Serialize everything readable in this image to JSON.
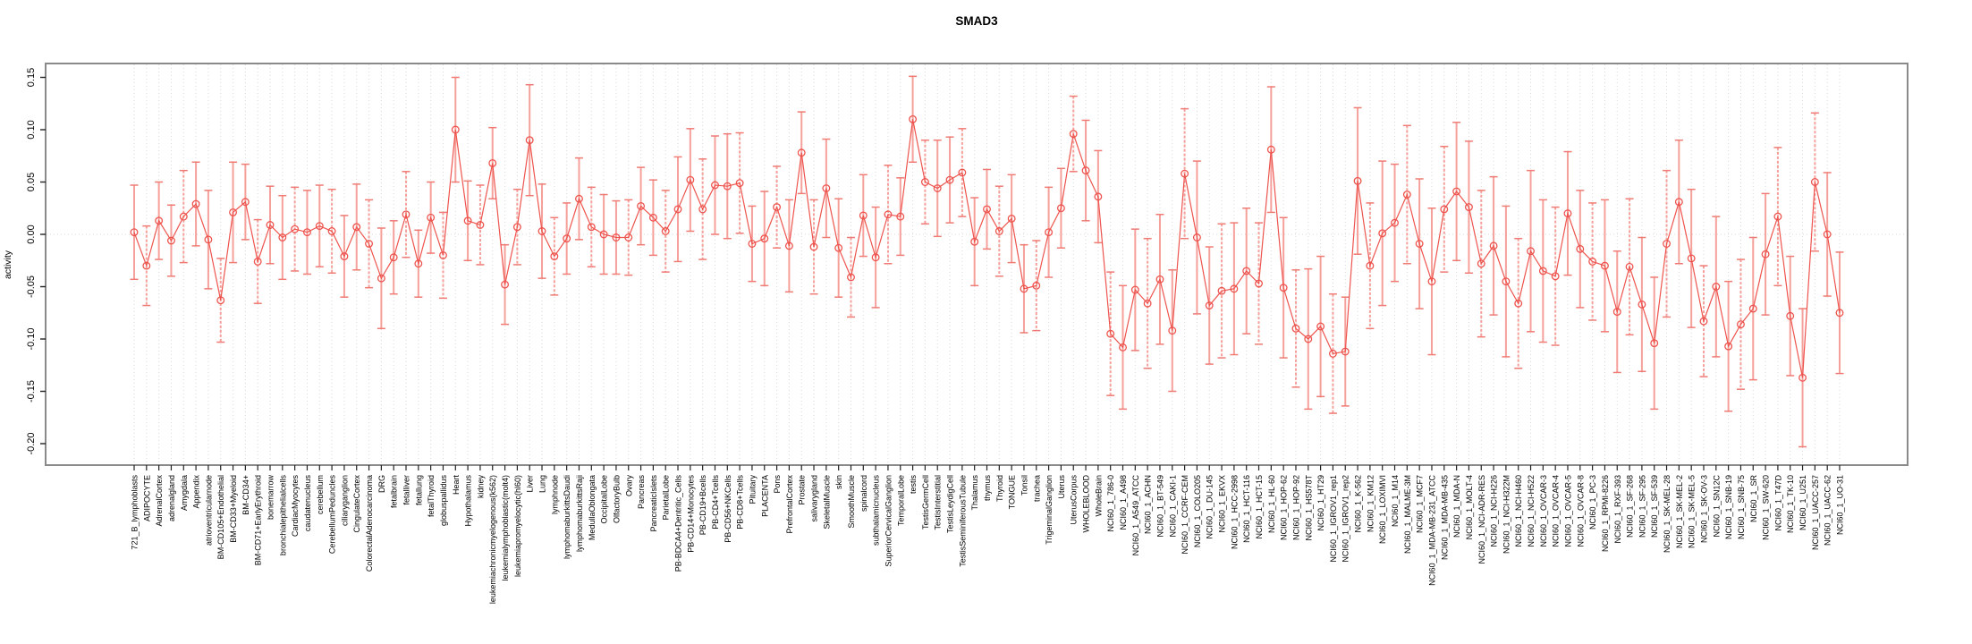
{
  "title": "SMAD3",
  "chart_data": {
    "type": "scatter",
    "subtype": "points-with-error-bars-connected-by-line",
    "title": "SMAD3",
    "xlabel": "",
    "ylabel": "activity",
    "ylim": [
      -0.22,
      0.165
    ],
    "yticks": [
      0.15,
      0.1,
      0.05,
      0.0,
      -0.05,
      -0.1,
      -0.15,
      -0.2
    ],
    "grid": "vertical dotted line at every category; horizontal dotted line at y=0",
    "legend": "none",
    "colors": {
      "point": "#ee544e",
      "line": "#ee544e",
      "errorbar": "#f5a09a",
      "errorbar_cap": "#ef7b74",
      "grid": "#d8d8d8",
      "box": "#8a8a8a",
      "text": "#000000"
    },
    "categories": [
      "721_B_lymphoblasts",
      "ADIPOCYTE",
      "AdrenalCortex",
      "adrenalgland",
      "Amygdala",
      "Appendix",
      "atrioventricularnode",
      "BM-CD105+Endothelial",
      "BM-CD33+Myeloid",
      "BM-CD34+",
      "BM-CD71+EarlyErythroid",
      "bonemarrow",
      "bronchialepithelialcells",
      "CardiacMyocytes",
      "caudatenucleus",
      "cerebellum",
      "CerebellumPeduncles",
      "ciliaryganglion",
      "CingulateCortex",
      "ColorectalAdenocarcinoma",
      "DRG",
      "fetalbrain",
      "fetalliver",
      "fetallung",
      "fetalThyroid",
      "globuspallidus",
      "Heart",
      "Hypothalamus",
      "kidney",
      "leukemiachronicmyelogenous(k562)",
      "leukemialymphoblastic(molt4)",
      "leukemiapromyelocytic(hl60)",
      "Liver",
      "Lung",
      "lymphnode",
      "lymphomaburkittsDaudi",
      "lymphomaburkittsRaji",
      "MedullaOblongata",
      "OccipitalLobe",
      "OlfactoryBulb",
      "Ovary",
      "Pancreas",
      "PancreaticIslets",
      "ParietalLobe",
      "PB-BDCA4+Dentritic_Cells",
      "PB-CD14+Monocytes",
      "PB-CD19+Bcells",
      "PB-CD4+Tcells",
      "PB-CD56+NKCells",
      "PB-CD8+Tcells",
      "Pituitary",
      "PLACENTA",
      "Pons",
      "PrefrontalCortex",
      "Prostate",
      "salivarygland",
      "SkeletalMuscle",
      "skin",
      "SmoothMuscle",
      "spinalcord",
      "subthalamicnucleus",
      "SuperiorCervicalGanglion",
      "TemporalLobe",
      "testis",
      "TestisGermCell",
      "TestisInterstitial",
      "TestisLeydigCell",
      "TestisSeminiferousTubule",
      "Thalamus",
      "thymus",
      "Thyroid",
      "TONGUE",
      "Tonsil",
      "trachea",
      "TrigeminalGanglion",
      "Uterus",
      "UterusCorpus",
      "WHOLEBLOOD",
      "WholeBrain",
      "NCI60_1_786-0",
      "NCI60_1_A498",
      "NCI60_1_A549_ATCC",
      "NCI60_1_ACHN",
      "NCI60_1_BT-549",
      "NCI60_1_CAKI-1",
      "NCI60_1_CCRF-CEM",
      "NCI60_1_COLO205",
      "NCI60_1_DU-145",
      "NCI60_1_EKVX",
      "NCI60_1_HCC-2998",
      "NCI60_1_HCT-116",
      "NCI60_1_HCT-15",
      "NCI60_1_HL-60",
      "NCI60_1_HOP-62",
      "NCI60_1_HOP-92",
      "NCI60_1_HS578T",
      "NCI60_1_HT29",
      "NCI60_1_IGROV1_rep1",
      "NCI60_1_IGROV1_rep2",
      "NCI60_1_K-562",
      "NCI60_1_KM12",
      "NCI60_1_LOXIMVI",
      "NCI60_1_M14",
      "NCI60_1_MALME-3M",
      "NCI60_1_MCF7",
      "NCI60_1_MDA-MB-231_ATCC",
      "NCI60_1_MDA-MB-435",
      "NCI60_1_MDA-N",
      "NCI60_1_MOLT-4",
      "NCI60_1_NCI-ADR-RES",
      "NCI60_1_NCI-H226",
      "NCI60_1_NCI-H322M",
      "NCI60_1_NCI-H460",
      "NCI60_1_NCI-H522",
      "NCI60_1_OVCAR-3",
      "NCI60_1_OVCAR-4",
      "NCI60_1_OVCAR-5",
      "NCI60_1_OVCAR-8",
      "NCI60_1_PC-3",
      "NCI60_1_RPMI-8226",
      "NCI60_1_RXF-393",
      "NCI60_1_SF-268",
      "NCI60_1_SF-295",
      "NCI60_1_SF-539",
      "NCI60_1_SK-MEL-28",
      "NCI60_1_SK-MEL-2",
      "NCI60_1_SK-MEL-5",
      "NCI60_1_SK-OV-3",
      "NCI60_1_SN12C",
      "NCI60_1_SNB-19",
      "NCI60_1_SNB-75",
      "NCI60_1_SR",
      "NCI60_1_SW-620",
      "NCI60_1_T47D",
      "NCI60_1_TK-10",
      "NCI60_1_U251",
      "NCI60_1_UACC-257",
      "NCI60_1_UACC-62",
      "NCI60_1_UO-31"
    ],
    "values": [
      0.002,
      -0.03,
      0.013,
      -0.006,
      0.017,
      0.029,
      -0.005,
      -0.063,
      0.021,
      0.031,
      -0.026,
      0.009,
      -0.003,
      0.005,
      0.002,
      0.008,
      0.003,
      -0.021,
      0.007,
      -0.009,
      -0.042,
      -0.022,
      0.019,
      -0.028,
      0.016,
      -0.02,
      0.1,
      0.013,
      0.009,
      0.068,
      -0.048,
      0.007,
      0.09,
      0.003,
      -0.021,
      -0.004,
      0.034,
      0.007,
      0.0,
      -0.003,
      -0.003,
      0.027,
      0.016,
      0.003,
      0.024,
      0.052,
      0.024,
      0.047,
      0.046,
      0.049,
      -0.009,
      -0.004,
      0.026,
      -0.011,
      0.078,
      -0.012,
      0.044,
      -0.013,
      -0.041,
      0.018,
      -0.022,
      0.019,
      0.017,
      0.11,
      0.05,
      0.044,
      0.052,
      0.059,
      -0.007,
      0.024,
      0.003,
      0.015,
      -0.052,
      -0.049,
      0.002,
      0.025,
      0.096,
      0.061,
      0.036,
      -0.095,
      -0.108,
      -0.053,
      -0.066,
      -0.043,
      -0.092,
      0.058,
      -0.003,
      -0.068,
      -0.054,
      -0.052,
      -0.035,
      -0.047,
      0.081,
      -0.051,
      -0.09,
      -0.1,
      -0.088,
      -0.114,
      -0.112,
      0.051,
      -0.03,
      0.001,
      0.011,
      0.038,
      -0.009,
      -0.045,
      0.024,
      0.041,
      0.026,
      -0.028,
      -0.011,
      -0.045,
      -0.066,
      -0.016,
      -0.035,
      -0.04,
      0.02,
      -0.014,
      -0.026,
      -0.03,
      -0.074,
      -0.031,
      -0.067,
      -0.104,
      -0.009,
      0.031,
      -0.023,
      -0.083,
      -0.05,
      -0.107,
      -0.086,
      -0.071,
      -0.019,
      0.017,
      -0.078,
      -0.137,
      0.05,
      0.0,
      -0.075
    ],
    "errors": [
      0.045,
      0.038,
      0.037,
      0.034,
      0.044,
      0.04,
      0.047,
      0.04,
      0.048,
      0.036,
      0.04,
      0.037,
      0.04,
      0.04,
      0.04,
      0.039,
      0.04,
      0.039,
      0.041,
      0.042,
      0.048,
      0.035,
      0.041,
      0.032,
      0.034,
      0.041,
      0.05,
      0.038,
      0.038,
      0.034,
      0.038,
      0.036,
      0.053,
      0.045,
      0.037,
      0.034,
      0.039,
      0.038,
      0.038,
      0.035,
      0.036,
      0.037,
      0.036,
      0.039,
      0.05,
      0.049,
      0.048,
      0.047,
      0.05,
      0.048,
      0.036,
      0.045,
      0.039,
      0.044,
      0.039,
      0.045,
      0.047,
      0.047,
      0.038,
      0.039,
      0.048,
      0.047,
      0.037,
      0.041,
      0.04,
      0.046,
      0.041,
      0.042,
      0.042,
      0.038,
      0.043,
      0.042,
      0.042,
      0.043,
      0.043,
      0.038,
      0.036,
      0.048,
      0.044,
      0.059,
      0.059,
      0.058,
      0.062,
      0.062,
      0.058,
      0.062,
      0.073,
      0.056,
      0.064,
      0.063,
      0.06,
      0.058,
      0.06,
      0.067,
      0.056,
      0.067,
      0.067,
      0.057,
      0.052,
      0.07,
      0.06,
      0.069,
      0.056,
      0.066,
      0.062,
      0.07,
      0.06,
      0.066,
      0.063,
      0.07,
      0.066,
      0.072,
      0.062,
      0.077,
      0.068,
      0.066,
      0.059,
      0.056,
      0.056,
      0.063,
      0.058,
      0.065,
      0.064,
      0.063,
      0.07,
      0.059,
      0.066,
      0.053,
      0.067,
      0.062,
      0.062,
      0.068,
      0.058,
      0.066,
      0.057,
      0.066,
      0.066,
      0.059,
      0.058
    ]
  }
}
